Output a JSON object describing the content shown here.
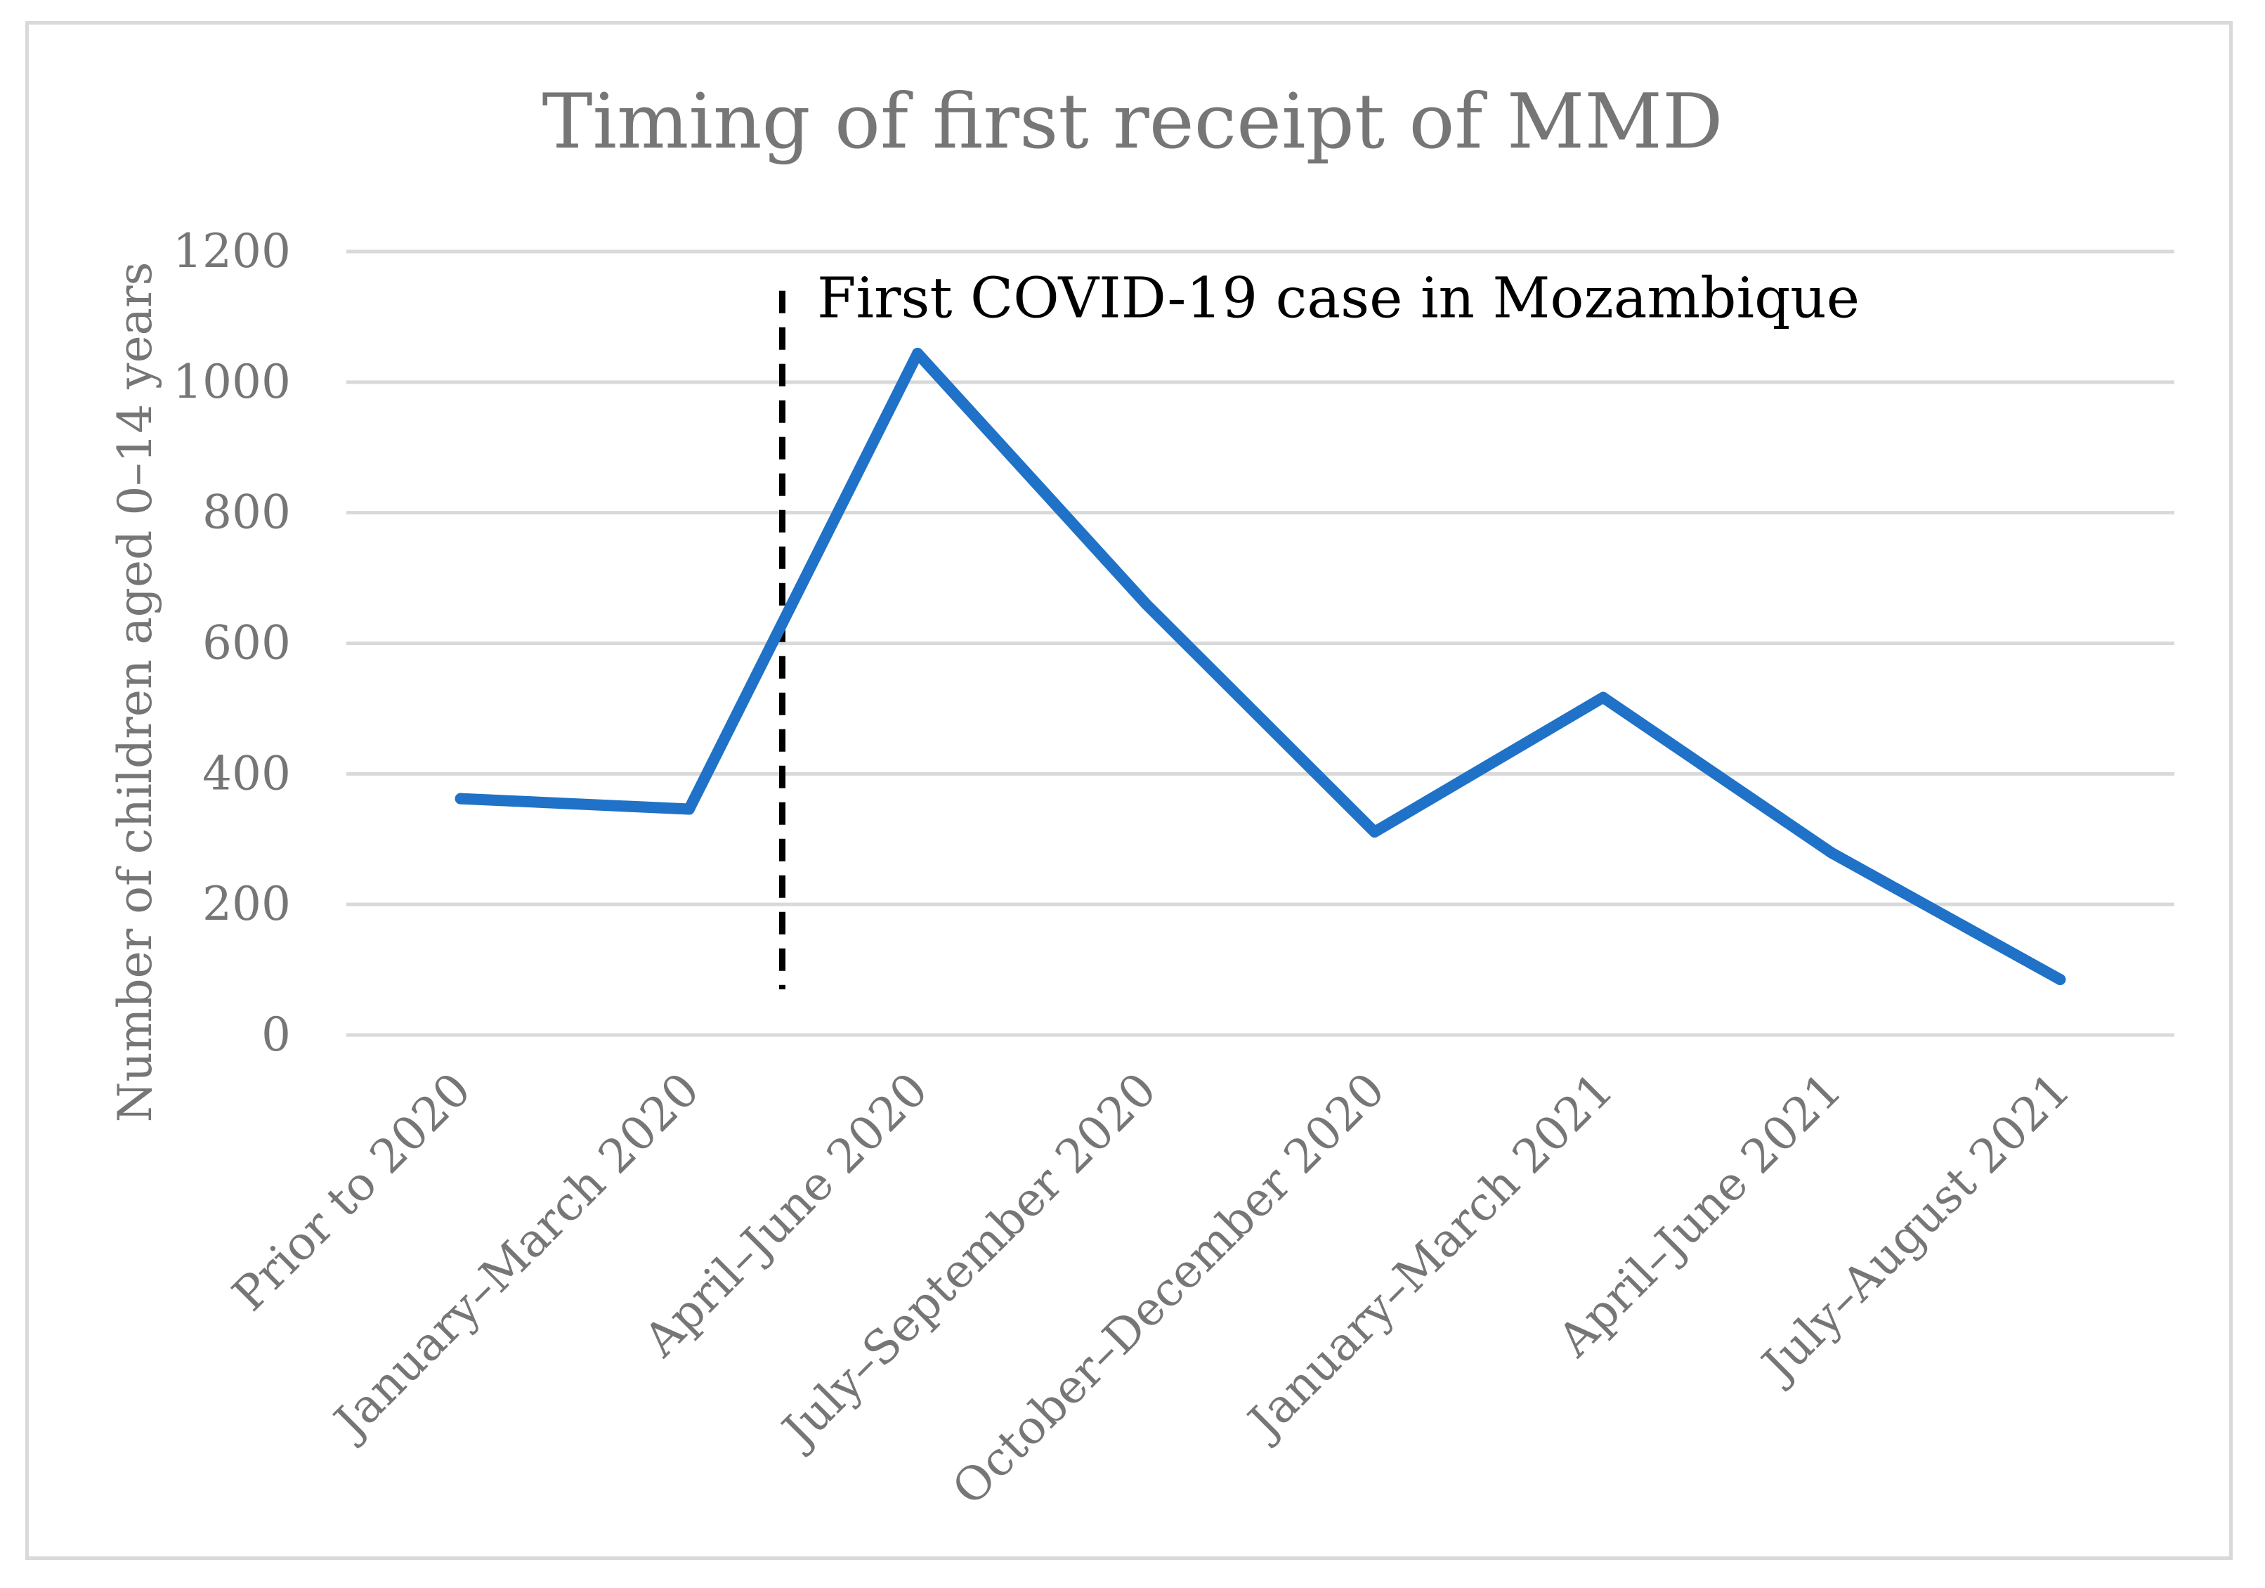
{
  "chart_data": {
    "type": "line",
    "title": "Timing of first receipt of MMD",
    "ylabel": "Number of children aged 0–14 years",
    "xlabel": "",
    "categories": [
      "Prior to 2020",
      "January–March 2020",
      "April–June 2020",
      "July–September 2020",
      "October–December 2020",
      "January–March 2021",
      "April–June 2021",
      "July–August 2021"
    ],
    "series": [
      {
        "name": "Number of children aged 0–14 years",
        "values": [
          362,
          346,
          1044,
          660,
          311,
          517,
          279,
          85
        ],
        "color": "#1f72c7"
      }
    ],
    "ylim": [
      0,
      1200
    ],
    "yticks": [
      0,
      200,
      400,
      600,
      800,
      1000,
      1200
    ],
    "grid": true,
    "annotation": {
      "text": "First COVID-19 case in Mozambique",
      "between_categories": [
        "January–March 2020",
        "April–June 2020"
      ],
      "line_style": "dashed",
      "color": "#000000"
    },
    "colors": {
      "grid": "#d9d9d9",
      "text": "#767676",
      "annotation": "#000000"
    }
  }
}
